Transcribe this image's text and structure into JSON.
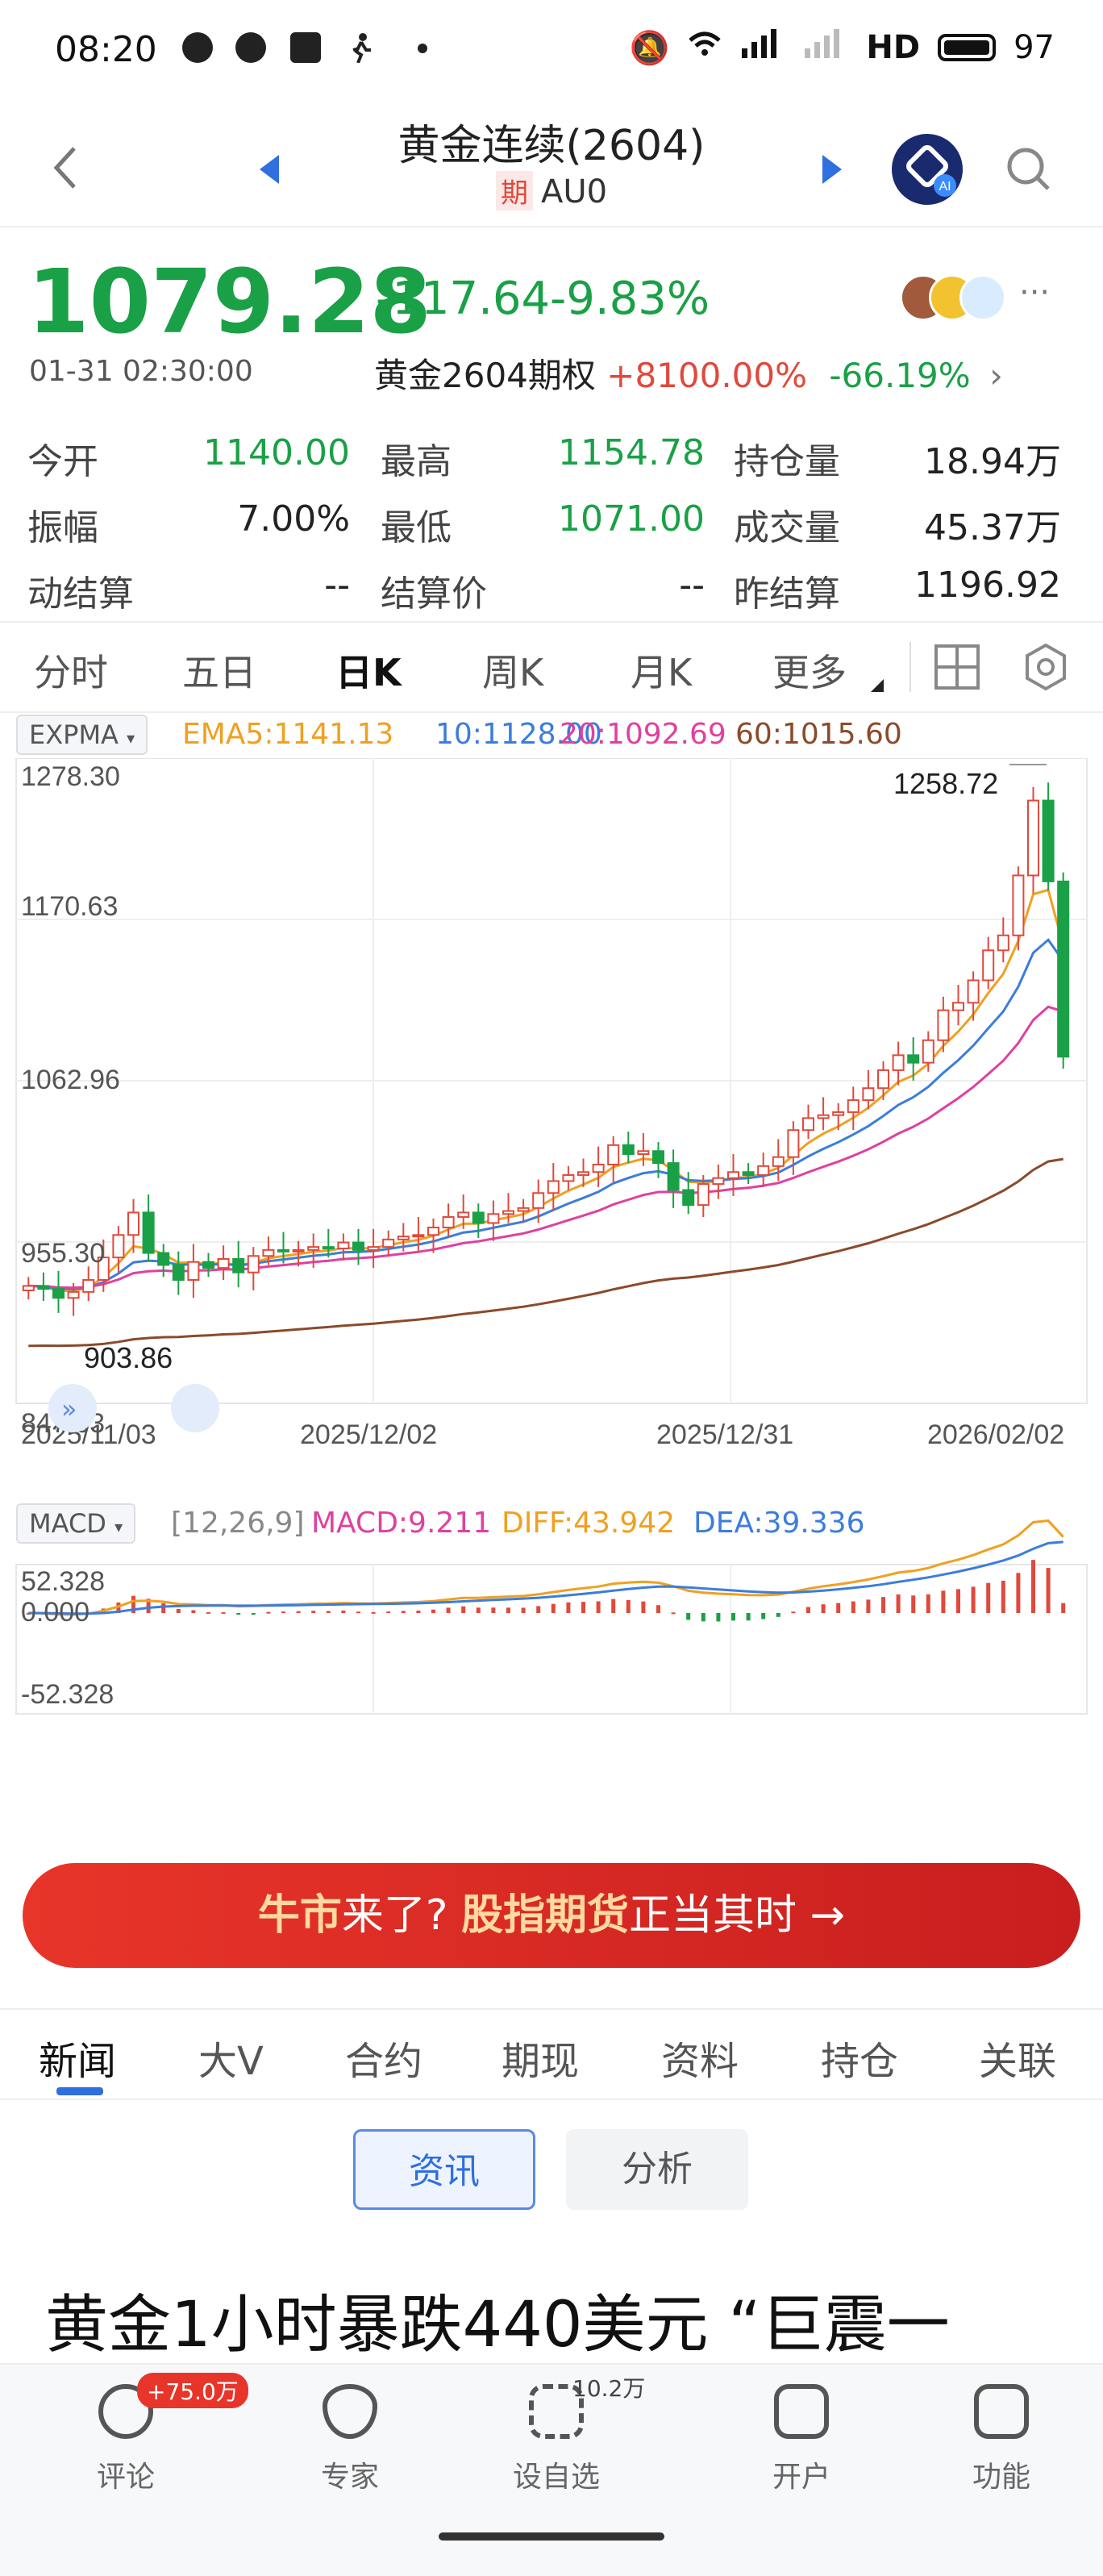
{
  "status_bar": {
    "time": "08:20",
    "network": "HD",
    "battery": "97"
  },
  "header": {
    "title": "黄金连续(2604)",
    "badge": "期",
    "code": "AU0",
    "ai_label": "AI"
  },
  "quote": {
    "price": "1079.28",
    "change": "-117.64",
    "change_pct": "-9.83%",
    "datetime": "01-31 02:30:00",
    "option_name": "黄金2604期权",
    "option_pct1": "+8100.00%",
    "option_pct2": "-66.19%"
  },
  "stats": {
    "rows": [
      [
        {
          "label": "今开",
          "value": "1140.00",
          "color": "green"
        },
        {
          "label": "最高",
          "value": "1154.78",
          "color": "green"
        },
        {
          "label": "持仓量",
          "value": "18.94万",
          "color": "black"
        }
      ],
      [
        {
          "label": "振幅",
          "value": "7.00%",
          "color": "black"
        },
        {
          "label": "最低",
          "value": "1071.00",
          "color": "green"
        },
        {
          "label": "成交量",
          "value": "45.37万",
          "color": "black"
        }
      ],
      [
        {
          "label": "动结算",
          "value": "--",
          "color": "black"
        },
        {
          "label": "结算价",
          "value": "--",
          "color": "black"
        },
        {
          "label": "昨结算",
          "value": "1196.92",
          "color": "black"
        }
      ]
    ]
  },
  "chart_tabs": [
    "分时",
    "五日",
    "日K",
    "周K",
    "月K",
    "更多"
  ],
  "active_chart_tab": "日K",
  "indicator": {
    "name": "EXPMA",
    "ema5": "EMA5:1141.13",
    "ema10": "10:1128.00",
    "ema20": "20:1092.69",
    "ema60": "60:1015.60"
  },
  "macd": {
    "name": "MACD",
    "params": "[12,26,9]",
    "macd": "MACD:9.211",
    "diff": "DIFF:43.942",
    "dea": "DEA:39.336",
    "y_labels": [
      "52.328",
      "0.000",
      "-52.328"
    ]
  },
  "chart_data": {
    "type": "candlestick",
    "y_labels": [
      "1278.30",
      "1170.63",
      "1062.96",
      "955.30",
      "847.63"
    ],
    "ylim": [
      847.63,
      1278.3
    ],
    "x_labels": [
      "2025/11/03",
      "2025/12/02",
      "2025/12/31",
      "2026/02/02"
    ],
    "max_label": "1258.72",
    "min_label": "903.86",
    "series": [
      {
        "name": "EMA5",
        "color": "#f0a020"
      },
      {
        "name": "10",
        "color": "#3b7ddd"
      },
      {
        "name": "20",
        "color": "#e040a0"
      },
      {
        "name": "60",
        "color": "#8b4a2b"
      }
    ],
    "closes": [
      926,
      924,
      918,
      922,
      930,
      945,
      960,
      975,
      948,
      940,
      930,
      942,
      938,
      944,
      935,
      946,
      950,
      949,
      950,
      952,
      951,
      955,
      950,
      952,
      957,
      959,
      960,
      965,
      972,
      975,
      968,
      974,
      976,
      978,
      988,
      996,
      1000,
      1002,
      1007,
      1020,
      1014,
      1016,
      1008,
      990,
      980,
      994,
      998,
      1002,
      1000,
      1006,
      1012,
      1030,
      1038,
      1040,
      1042,
      1050,
      1058,
      1070,
      1080,
      1075,
      1090,
      1110,
      1115,
      1130,
      1150,
      1160,
      1200,
      1250,
      1196,
      1079
    ]
  },
  "banner": {
    "part1": "牛市",
    "part2": "来了? ",
    "part3": "股指期货",
    "part4": "正当其时 →"
  },
  "news_tabs": [
    "新闻",
    "大V",
    "合约",
    "期现",
    "资料",
    "持仓",
    "关联"
  ],
  "segments": {
    "left": "资讯",
    "right": "分析"
  },
  "headline": "黄金1小时暴跌440美元 “巨震一",
  "bottom_nav": [
    {
      "label": "评论",
      "badge": "+75.0万"
    },
    {
      "label": "专家",
      "badge": ""
    },
    {
      "label": "设自选",
      "badge": "10.2万"
    },
    {
      "label": "开户",
      "badge": ""
    },
    {
      "label": "功能",
      "badge": ""
    }
  ]
}
